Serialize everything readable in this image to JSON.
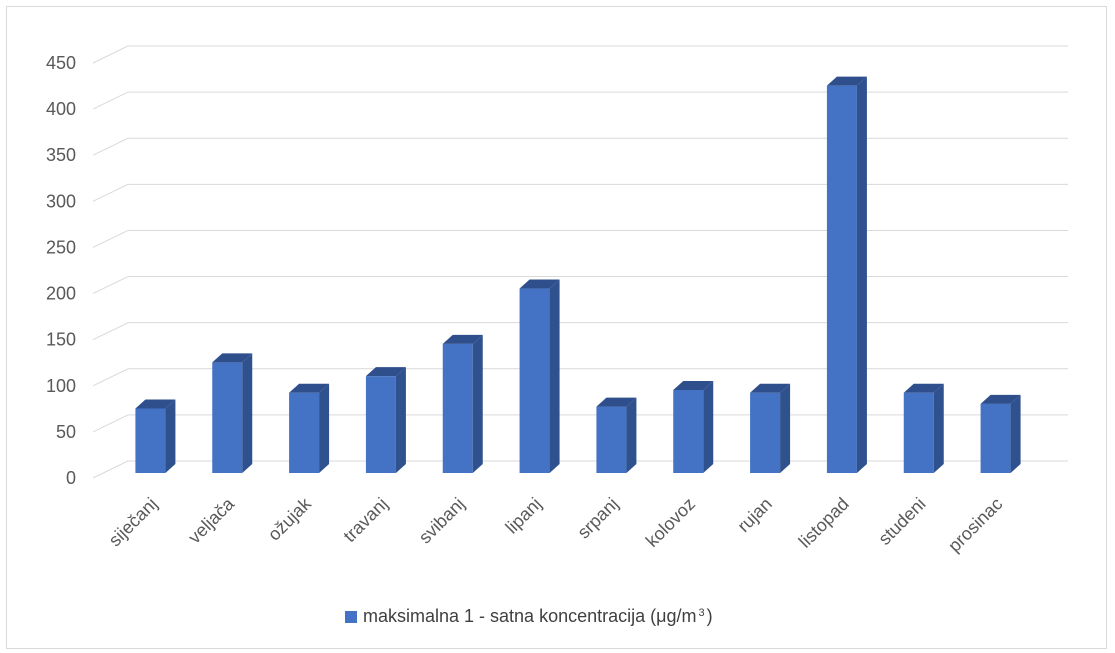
{
  "chart_data": {
    "type": "bar",
    "style": "3d-column",
    "categories": [
      "siječanj",
      "veljača",
      "ožujak",
      "travanj",
      "svibanj",
      "lipanj",
      "srpanj",
      "kolovoz",
      "rujan",
      "listopad",
      "studeni",
      "prosinac"
    ],
    "series": [
      {
        "name": "maksimalna 1 - satna koncentracija (μg/m3 )",
        "values": [
          70,
          120,
          87,
          105,
          140,
          200,
          72,
          90,
          87,
          420,
          87,
          75
        ]
      }
    ],
    "ylim": [
      0,
      450
    ],
    "yticks": [
      0,
      50,
      100,
      150,
      200,
      250,
      300,
      350,
      400,
      450
    ],
    "grid": true,
    "legend_position": "bottom",
    "colors": {
      "bar_front": "#4472c4",
      "bar_side": "#2f528f",
      "bar_top": "#2e4e8c",
      "grid": "#d9d9d9"
    }
  },
  "legend": {
    "text_before": "maksimalna 1 - satna koncentracija (μg/m",
    "superscript": "3",
    "text_after": " )"
  }
}
